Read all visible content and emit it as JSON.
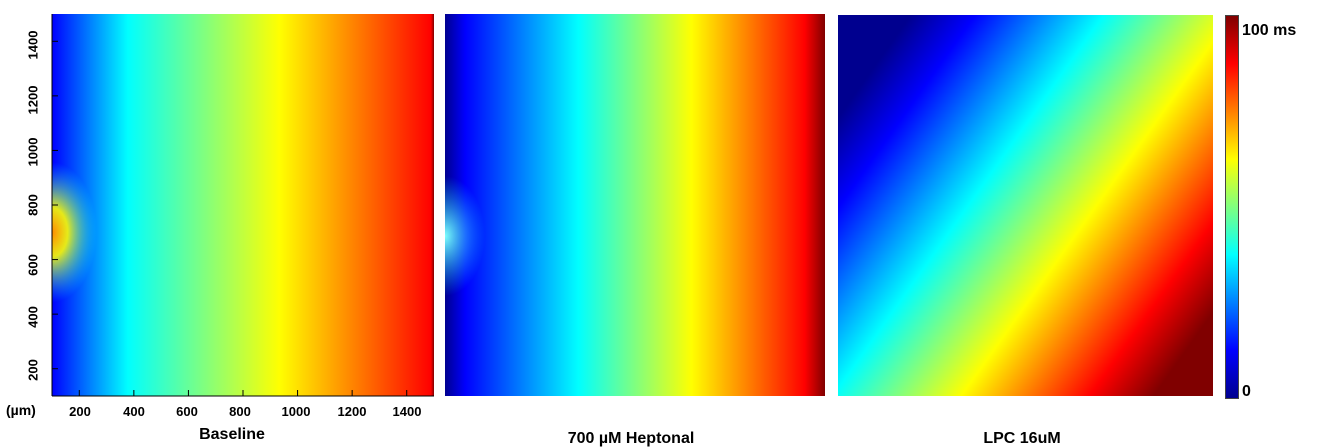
{
  "chart_data": [
    {
      "type": "heatmap",
      "title": "Baseline",
      "xlabel": "(µm)",
      "ylabel": "",
      "x_ticks": [
        "200",
        "400",
        "600",
        "800",
        "1000",
        "1200",
        "1400"
      ],
      "y_ticks": [
        "200",
        "400",
        "600",
        "800",
        "1000",
        "1200",
        "1400"
      ],
      "xlim": [
        100,
        1500
      ],
      "ylim": [
        100,
        1500
      ],
      "value_range_ms": [
        25,
        88
      ],
      "stimulus_site": {
        "x_um": 100,
        "y_um": 700
      }
    },
    {
      "type": "heatmap",
      "title": "700 µM Heptonal",
      "value_range_ms": [
        8,
        92
      ]
    },
    {
      "type": "heatmap",
      "title": "LPC 16uM",
      "value_range_ms": [
        0,
        100
      ]
    }
  ],
  "colorbar": {
    "max_label": "100 ms",
    "min_label": "0",
    "range_ms": [
      0,
      100
    ],
    "colormap": "jet"
  }
}
